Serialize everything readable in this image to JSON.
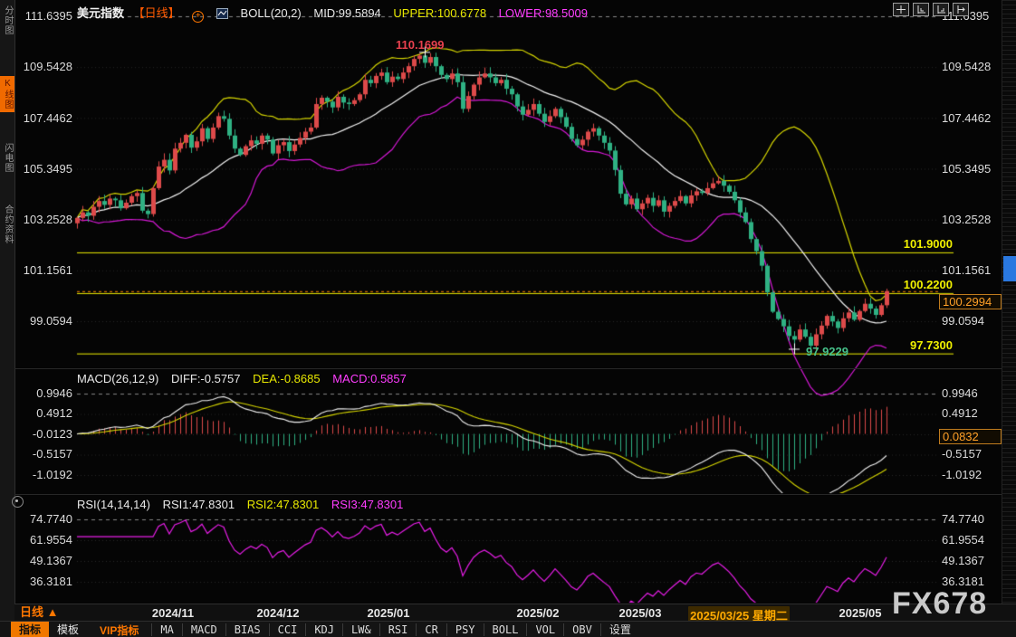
{
  "header": {
    "symbol": "美元指数",
    "period_tag": "【日线】",
    "indicator_title": "BOLL(20,2)",
    "mid": "MID:99.5894",
    "upper": "UPPER:100.6778",
    "lower": "LOWER:98.5009"
  },
  "sidebar": {
    "items": [
      {
        "label": "分时图",
        "active": false
      },
      {
        "label": "K线图",
        "active": true
      },
      {
        "label": "闪电图",
        "active": false
      },
      {
        "label": "合约资料",
        "active": false
      }
    ]
  },
  "price_axis": {
    "ticks": [
      "111.6395",
      "109.5428",
      "107.4462",
      "105.3495",
      "103.2528",
      "101.1561",
      "99.0594"
    ]
  },
  "levels": {
    "l1": "101.9000",
    "l2": "100.2200",
    "l3": "97.7300"
  },
  "current_price": "100.2994",
  "annotations": {
    "high": "110.1699",
    "low": "97.9229"
  },
  "macd_panel": {
    "title": "MACD(26,12,9)",
    "diff": "DIFF:-0.5757",
    "dea": "DEA:-0.8685",
    "macd": "MACD:0.5857",
    "ticks": [
      "0.9946",
      "0.4912",
      "-0.0123",
      "-0.5157",
      "-1.0192"
    ],
    "badge": "0.0832"
  },
  "rsi_panel": {
    "title": "RSI(14,14,14)",
    "rsi1": "RSI1:47.8301",
    "rsi2": "RSI2:47.8301",
    "rsi3": "RSI3:47.8301",
    "ticks": [
      "74.7740",
      "61.9554",
      "49.1367",
      "36.3181"
    ]
  },
  "timeline": {
    "period": "日线 ▲",
    "dates": [
      "2024/11",
      "2024/12",
      "2025/01",
      "2025/02",
      "2025/03",
      "2025/05"
    ],
    "highlight_date": "2025/03/25 星期二"
  },
  "toolbar": {
    "tab_indicator": "指标",
    "tab_template": "模板",
    "vip": "VIP指标",
    "items": [
      "MA",
      "MACD",
      "BIAS",
      "CCI",
      "KDJ",
      "LW&",
      "RSI",
      "CR",
      "PSY",
      "BOLL",
      "VOL",
      "OBV",
      "设置"
    ]
  },
  "watermark": "FX678",
  "colors": {
    "up_candle": "#dd4a4a",
    "down_candle": "#2fb183",
    "boll_mid": "#f2f2f2",
    "boll_upper": "#d6d600",
    "boll_lower": "#d619d6",
    "level_line": "#f0f000",
    "last_price_line": "#ff8800",
    "diff_line": "#f0f0f0",
    "dea_line": "#d6d600",
    "rsi_line": "#e81ee8",
    "accent_orange": "#f07800"
  },
  "chart_data": {
    "type": "candlestick",
    "title": "美元指数 日线 BOLL(20,2)",
    "x_axis_ticks": [
      "2024/11",
      "2024/12",
      "2025/01",
      "2025/02",
      "2025/03",
      "2025/05"
    ],
    "y_axis_ticks": [
      111.6395,
      109.5428,
      107.4462,
      105.3495,
      103.2528,
      101.1561,
      99.0594
    ],
    "ylim": [
      97.2,
      112.0
    ],
    "closes": [
      103.32,
      103.55,
      103.41,
      103.78,
      104.02,
      103.86,
      104.12,
      104.05,
      103.72,
      103.95,
      104.22,
      104.35,
      103.62,
      103.48,
      104.55,
      105.44,
      105.72,
      105.28,
      106.18,
      106.42,
      106.75,
      106.22,
      106.48,
      107.02,
      106.58,
      107.05,
      107.52,
      107.41,
      106.72,
      106.18,
      105.92,
      106.28,
      106.52,
      106.38,
      106.72,
      106.55,
      105.98,
      106.32,
      106.45,
      106.08,
      106.35,
      106.62,
      106.88,
      107.05,
      108.02,
      108.28,
      108.12,
      107.88,
      108.32,
      108.08,
      108.02,
      108.18,
      108.42,
      109.02,
      108.88,
      109.18,
      109.32,
      108.92,
      109.15,
      109.05,
      109.32,
      109.58,
      109.88,
      110.02,
      109.72,
      109.96,
      109.58,
      109.22,
      109.05,
      109.28,
      108.92,
      107.82,
      108.35,
      108.82,
      109.12,
      109.28,
      109.12,
      108.88,
      109.02,
      108.65,
      108.42,
      107.92,
      107.58,
      107.78,
      108.02,
      107.62,
      107.28,
      107.52,
      107.82,
      107.48,
      107.08,
      106.58,
      106.32,
      106.55,
      106.88,
      107.02,
      106.72,
      106.42,
      106.1,
      105.3,
      104.32,
      103.88,
      104.12,
      103.68,
      103.92,
      104.15,
      103.82,
      104.05,
      103.58,
      103.82,
      104.02,
      104.22,
      103.92,
      104.25,
      104.42,
      104.35,
      104.55,
      104.75,
      104.85,
      104.65,
      104.4,
      104.05,
      103.55,
      103.15,
      102.45,
      101.95,
      101.35,
      100.25,
      99.45,
      99.15,
      98.85,
      98.45,
      98.3,
      98.72,
      98.42,
      98.05,
      98.52,
      98.88,
      99.28,
      99.05,
      98.78,
      99.18,
      99.42,
      99.12,
      99.48,
      99.78,
      99.58,
      99.32,
      99.72,
      100.2994
    ],
    "first_open": 103.1,
    "high_marker": {
      "index": 64,
      "price": 110.1699
    },
    "low_marker": {
      "index": 132,
      "price": 97.9229
    },
    "horizontal_levels": [
      101.9,
      100.22,
      97.73
    ],
    "last_price": 100.2994,
    "overlays": {
      "boll": {
        "period": 20,
        "mult": 2,
        "mid": 99.5894,
        "upper": 100.6778,
        "lower": 98.5009
      }
    },
    "indicators": {
      "macd": {
        "params": [
          26,
          12,
          9
        ],
        "diff": -0.5757,
        "dea": -0.8685,
        "macd": 0.5857,
        "axis": [
          0.9946,
          0.4912,
          -0.0123,
          -0.5157,
          -1.0192
        ],
        "badge": 0.0832
      },
      "rsi": {
        "params": [
          14,
          14,
          14
        ],
        "rsi1": 47.8301,
        "rsi2": 47.8301,
        "rsi3": 47.8301,
        "axis": [
          74.774,
          61.9554,
          49.1367,
          36.3181
        ]
      }
    },
    "legend_position": "top-left",
    "grid": "dotted-horizontal"
  }
}
